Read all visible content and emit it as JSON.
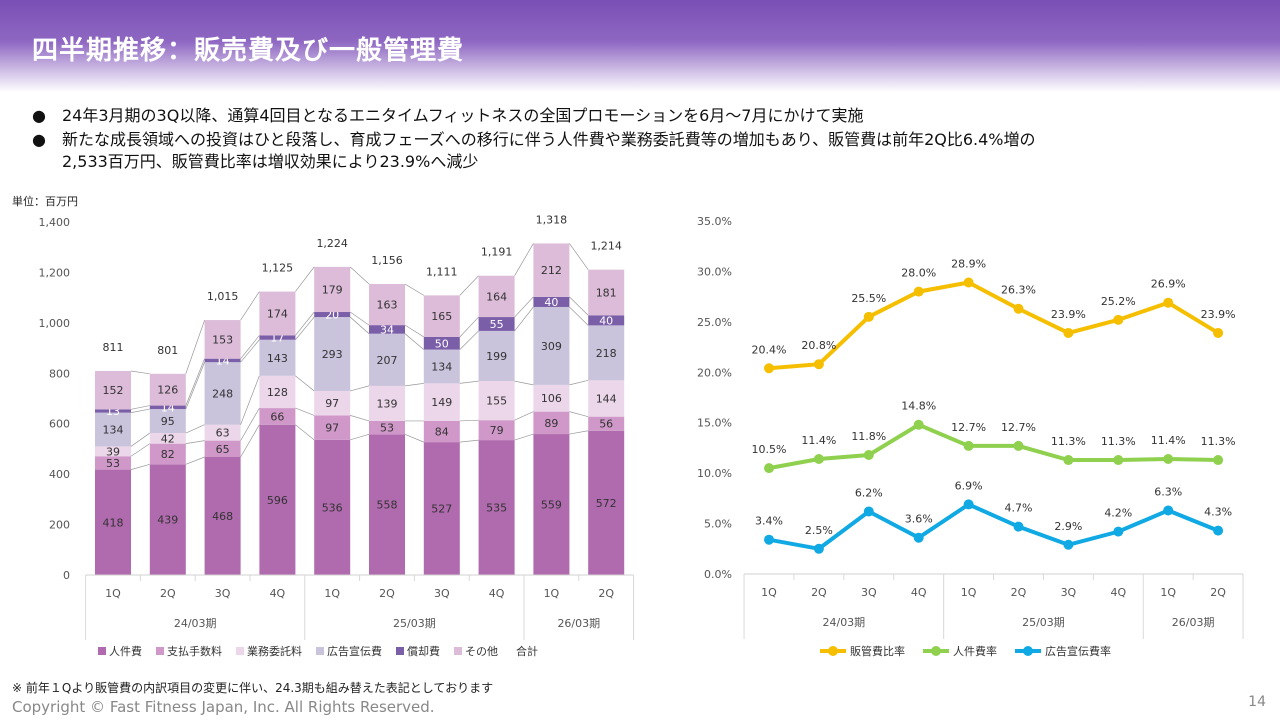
{
  "header": {
    "title": "四半期推移：販売費及び一般管理費"
  },
  "bullets": [
    "24年3月期の3Q以降、通算4回目となるエニタイムフィットネスの全国プロモーションを6月～7月にかけて実施",
    "新たな成長領域への投資はひと段落し、育成フェーズへの移行に伴う人件費や業務委託費等の増加もあり、販管費は前年2Q比6.4%増の",
    "2,533百万円、販管費比率は増収効果により23.9%へ減少"
  ],
  "unit_label": "単位：百万円",
  "footnote": "※ 前年１Qより販管費の内訳項目の変更に伴い、24.3期も組み替えた表記としております",
  "copyright": "Copyright © Fast Fitness Japan, Inc. All Rights Reserved.",
  "page_number": "14",
  "chart_data": [
    {
      "type": "bar",
      "stacked": true,
      "categories": [
        "1Q",
        "2Q",
        "3Q",
        "4Q",
        "1Q",
        "2Q",
        "3Q",
        "4Q",
        "1Q",
        "2Q"
      ],
      "groups": [
        {
          "label": "24/03期",
          "count": 4
        },
        {
          "label": "25/03期",
          "count": 4
        },
        {
          "label": "26/03期",
          "count": 2
        }
      ],
      "ylim": [
        0,
        1400
      ],
      "yticks": [
        0,
        200,
        400,
        600,
        800,
        1000,
        1200,
        1400
      ],
      "yticklabels": [
        "0",
        "200",
        "400",
        "600",
        "800",
        "1,000",
        "1,200",
        "1,400"
      ],
      "series": [
        {
          "name": "人件費",
          "color": "#b06aae",
          "values": [
            418,
            439,
            468,
            596,
            536,
            558,
            527,
            535,
            559,
            572
          ]
        },
        {
          "name": "支払手数料",
          "color": "#cf98c8",
          "values": [
            53,
            82,
            65,
            66,
            97,
            53,
            84,
            79,
            89,
            56
          ]
        },
        {
          "name": "業務委託料",
          "color": "#ecd6ea",
          "values": [
            39,
            42,
            63,
            128,
            97,
            139,
            149,
            155,
            106,
            144
          ]
        },
        {
          "name": "広告宣伝費",
          "color": "#c9c3dc",
          "values": [
            134,
            95,
            248,
            143,
            293,
            207,
            134,
            199,
            309,
            218
          ]
        },
        {
          "name": "償却費",
          "color": "#7b5ea8",
          "values": [
            13,
            14,
            14,
            17,
            20,
            34,
            50,
            55,
            40,
            40
          ]
        },
        {
          "name": "その他",
          "color": "#dcbcd9",
          "values": [
            152,
            126,
            153,
            174,
            179,
            163,
            165,
            164,
            212,
            181
          ]
        }
      ],
      "total": {
        "name": "合計",
        "values": [
          "811",
          "801",
          "1,015",
          "1,125",
          "1,224",
          "1,156",
          "1,111",
          "1,191",
          "1,318",
          "1,214"
        ]
      },
      "legend": "bottom"
    },
    {
      "type": "line",
      "categories": [
        "1Q",
        "2Q",
        "3Q",
        "4Q",
        "1Q",
        "2Q",
        "3Q",
        "4Q",
        "1Q",
        "2Q"
      ],
      "groups": [
        {
          "label": "24/03期",
          "count": 4
        },
        {
          "label": "25/03期",
          "count": 4
        },
        {
          "label": "26/03期",
          "count": 2
        }
      ],
      "ylim": [
        0,
        35
      ],
      "yticks": [
        0,
        5,
        10,
        15,
        20,
        25,
        30,
        35
      ],
      "yticklabels": [
        "0.0%",
        "5.0%",
        "10.0%",
        "15.0%",
        "20.0%",
        "25.0%",
        "30.0%",
        "35.0%"
      ],
      "series": [
        {
          "name": "販管費比率",
          "color": "#f5bf00",
          "values": [
            20.4,
            20.8,
            25.5,
            28.0,
            28.9,
            26.3,
            23.9,
            25.2,
            26.9,
            23.9
          ]
        },
        {
          "name": "人件費率",
          "color": "#8fd14f",
          "values": [
            10.5,
            11.4,
            11.8,
            14.8,
            12.7,
            12.7,
            11.3,
            11.3,
            11.4,
            11.3
          ]
        },
        {
          "name": "広告宣伝費率",
          "color": "#11a9e3",
          "values": [
            3.4,
            2.5,
            6.2,
            3.6,
            6.9,
            4.7,
            2.9,
            4.2,
            6.3,
            4.3
          ]
        }
      ],
      "legend": "bottom"
    }
  ]
}
